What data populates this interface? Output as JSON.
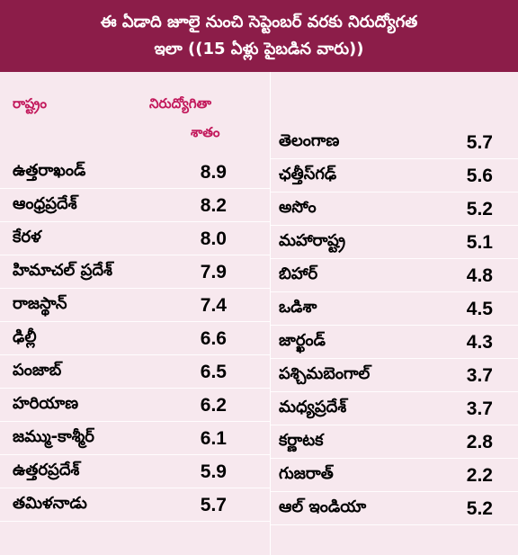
{
  "header": {
    "line1": "ఈ ఏడాది జూలై నుంచి సెప్టెంబర్ వరకు నిరుద్యోగత",
    "line2": "ఇలా ((15 ఏళ్లు పైబడిన వారు))"
  },
  "columns": {
    "state_label": "రాష్ట్రం",
    "rate_label_line1": "నిరుద్యోగితా",
    "rate_label_line2": "శాతం"
  },
  "left_rows": [
    {
      "state": "ఉత్తరాఖండ్",
      "value": "8.9"
    },
    {
      "state": "ఆంధ్రప్రదేశ్",
      "value": "8.2"
    },
    {
      "state": "కేరళ",
      "value": "8.0"
    },
    {
      "state": "హిమాచల్ ప్రదేశ్",
      "value": "7.9"
    },
    {
      "state": "రాజస్థాన్",
      "value": "7.4"
    },
    {
      "state": "ఢిల్లీ",
      "value": "6.6"
    },
    {
      "state": "పంజాబ్",
      "value": "6.5"
    },
    {
      "state": "హరియాణ",
      "value": "6.2"
    },
    {
      "state": "జమ్ము-కాశ్మీర్",
      "value": "6.1"
    },
    {
      "state": "ఉత్తరప్రదేశ్",
      "value": "5.9"
    },
    {
      "state": "తమిళనాడు",
      "value": "5.7"
    }
  ],
  "right_rows": [
    {
      "state": "తెలంగాణ",
      "value": "5.7"
    },
    {
      "state": "ఛత్తీస్‌గఢ్",
      "value": "5.6"
    },
    {
      "state": "అసోం",
      "value": "5.2"
    },
    {
      "state": "మహారాష్ట్ర",
      "value": "5.1"
    },
    {
      "state": "బిహార్",
      "value": "4.8"
    },
    {
      "state": "ఒడిశా",
      "value": "4.5"
    },
    {
      "state": "జార్ఖండ్",
      "value": "4.3"
    },
    {
      "state": "పశ్చిమబెంగాల్",
      "value": "3.7"
    },
    {
      "state": "మధ్యప్రదేశ్",
      "value": "3.7"
    },
    {
      "state": "కర్ణాటక",
      "value": "2.8"
    },
    {
      "state": "గుజరాత్",
      "value": "2.2"
    },
    {
      "state": "ఆల్ ఇండియా",
      "value": "5.2"
    }
  ],
  "colors": {
    "header_bg": "#8c1d49",
    "body_bg": "#f7e8ee",
    "accent": "#c2185b"
  }
}
